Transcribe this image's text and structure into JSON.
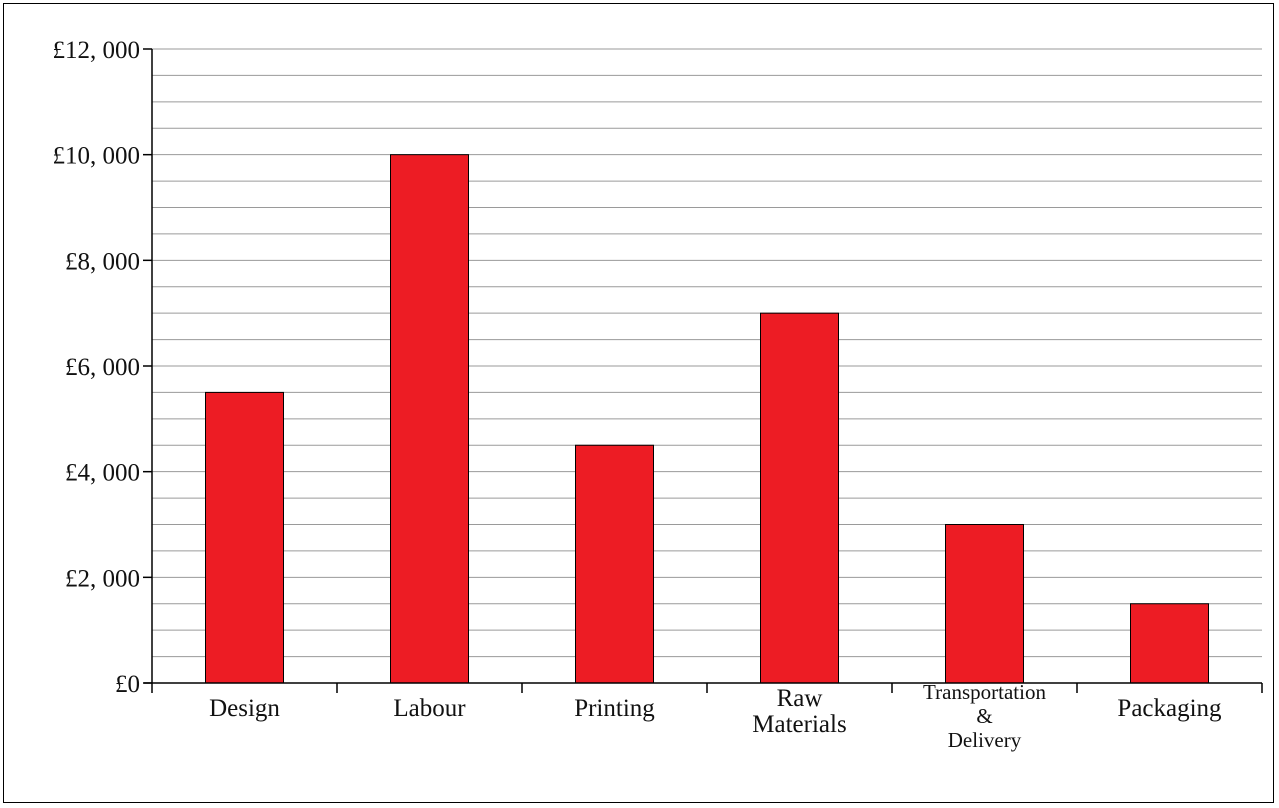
{
  "chart_data": {
    "type": "bar",
    "categories": [
      "Design",
      "Labour",
      "Printing",
      "Raw Materials",
      "Transportation & Delivery",
      "Packaging"
    ],
    "category_lines": [
      [
        "Design"
      ],
      [
        "Labour"
      ],
      [
        "Printing"
      ],
      [
        "Raw",
        "Materials"
      ],
      [
        "Transportation",
        "&",
        "Delivery"
      ],
      [
        "Packaging"
      ]
    ],
    "values": [
      5500,
      10000,
      4500,
      7000,
      3000,
      1500
    ],
    "ylim": [
      0,
      12000
    ],
    "y_major_step": 2000,
    "y_minor_step": 500,
    "y_tick_labels": [
      "£0",
      "£2, 000",
      "£4, 000",
      "£6, 000",
      "£8, 000",
      "£10, 000",
      "£12, 000"
    ],
    "title": "",
    "xlabel": "",
    "ylabel": "",
    "grid": true,
    "colors": {
      "bar": "#ed1c24",
      "grid": "#9a9a9a",
      "axis": "#000000"
    }
  }
}
